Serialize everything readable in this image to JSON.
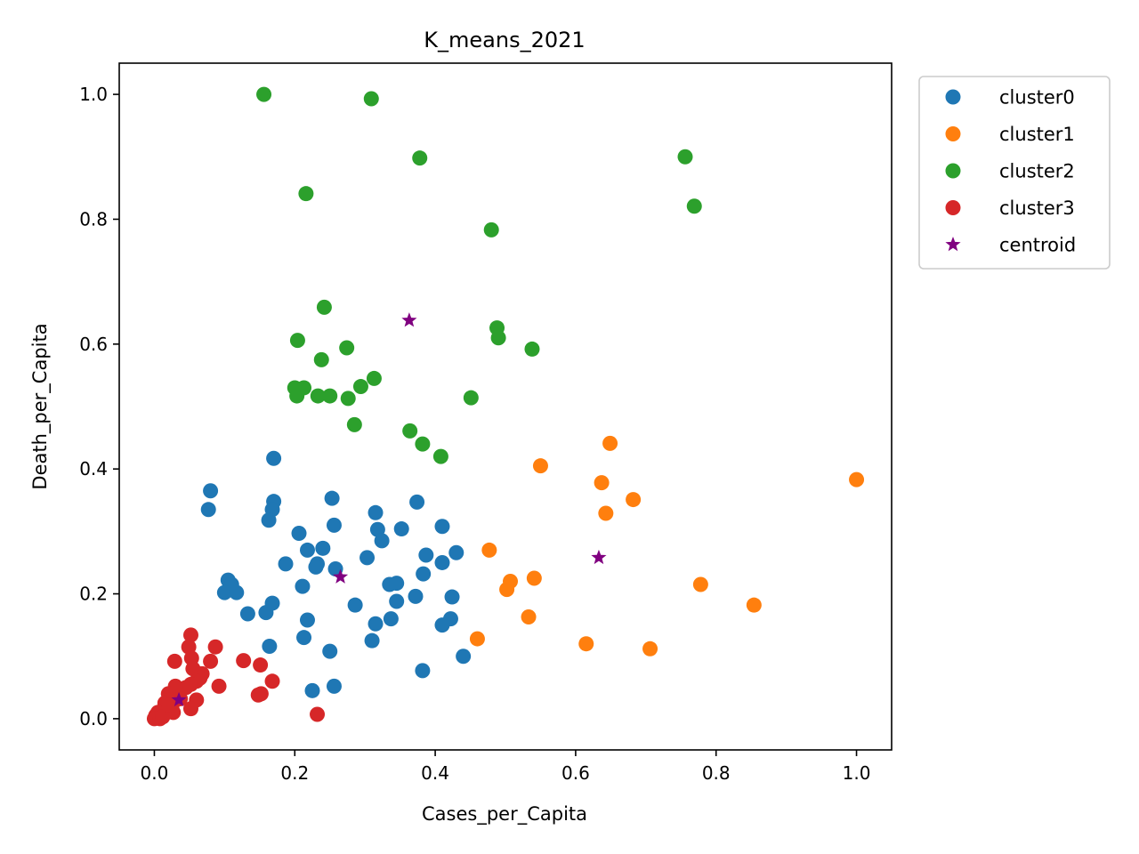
{
  "chart_data": {
    "type": "scatter",
    "title": "K_means_2021",
    "xlabel": "Cases_per_Capita",
    "ylabel": "Death_per_Capita",
    "xlim": [
      -0.05,
      1.05
    ],
    "ylim": [
      -0.05,
      1.05
    ],
    "xticks": [
      0.0,
      0.2,
      0.4,
      0.6,
      0.8,
      1.0
    ],
    "yticks": [
      0.0,
      0.2,
      0.4,
      0.6,
      0.8,
      1.0
    ],
    "xtick_labels": [
      "0.0",
      "0.2",
      "0.4",
      "0.6",
      "0.8",
      "1.0"
    ],
    "ytick_labels": [
      "0.0",
      "0.2",
      "0.4",
      "0.6",
      "0.8",
      "1.0"
    ],
    "grid": false,
    "legend_position": "outside-top-right",
    "series": [
      {
        "name": "cluster0",
        "color": "#1f77b4",
        "marker": "circle",
        "points": [
          [
            0.08,
            0.365
          ],
          [
            0.077,
            0.335
          ],
          [
            0.17,
            0.417
          ],
          [
            0.17,
            0.348
          ],
          [
            0.168,
            0.335
          ],
          [
            0.163,
            0.318
          ],
          [
            0.105,
            0.222
          ],
          [
            0.11,
            0.215
          ],
          [
            0.1,
            0.202
          ],
          [
            0.117,
            0.202
          ],
          [
            0.133,
            0.168
          ],
          [
            0.159,
            0.17
          ],
          [
            0.168,
            0.185
          ],
          [
            0.164,
            0.116
          ],
          [
            0.187,
            0.248
          ],
          [
            0.206,
            0.297
          ],
          [
            0.218,
            0.27
          ],
          [
            0.232,
            0.248
          ],
          [
            0.23,
            0.243
          ],
          [
            0.24,
            0.273
          ],
          [
            0.211,
            0.212
          ],
          [
            0.218,
            0.158
          ],
          [
            0.213,
            0.13
          ],
          [
            0.225,
            0.045
          ],
          [
            0.253,
            0.353
          ],
          [
            0.256,
            0.31
          ],
          [
            0.258,
            0.24
          ],
          [
            0.25,
            0.108
          ],
          [
            0.256,
            0.052
          ],
          [
            0.286,
            0.182
          ],
          [
            0.303,
            0.258
          ],
          [
            0.315,
            0.33
          ],
          [
            0.318,
            0.303
          ],
          [
            0.324,
            0.285
          ],
          [
            0.315,
            0.152
          ],
          [
            0.31,
            0.125
          ],
          [
            0.335,
            0.215
          ],
          [
            0.345,
            0.217
          ],
          [
            0.345,
            0.188
          ],
          [
            0.337,
            0.16
          ],
          [
            0.352,
            0.304
          ],
          [
            0.374,
            0.347
          ],
          [
            0.372,
            0.196
          ],
          [
            0.383,
            0.232
          ],
          [
            0.387,
            0.262
          ],
          [
            0.41,
            0.308
          ],
          [
            0.41,
            0.25
          ],
          [
            0.424,
            0.195
          ],
          [
            0.422,
            0.16
          ],
          [
            0.41,
            0.15
          ],
          [
            0.43,
            0.266
          ],
          [
            0.44,
            0.1
          ],
          [
            0.382,
            0.077
          ]
        ]
      },
      {
        "name": "cluster1",
        "color": "#ff7f0e",
        "marker": "circle",
        "points": [
          [
            0.477,
            0.27
          ],
          [
            0.46,
            0.128
          ],
          [
            0.55,
            0.405
          ],
          [
            0.507,
            0.22
          ],
          [
            0.502,
            0.207
          ],
          [
            0.541,
            0.225
          ],
          [
            0.533,
            0.163
          ],
          [
            0.637,
            0.378
          ],
          [
            0.649,
            0.441
          ],
          [
            0.643,
            0.329
          ],
          [
            0.682,
            0.351
          ],
          [
            0.615,
            0.12
          ],
          [
            0.706,
            0.112
          ],
          [
            0.778,
            0.215
          ],
          [
            0.854,
            0.182
          ],
          [
            1.0,
            0.383
          ]
        ]
      },
      {
        "name": "cluster2",
        "color": "#2ca02c",
        "marker": "circle",
        "points": [
          [
            0.156,
            1.0
          ],
          [
            0.309,
            0.993
          ],
          [
            0.378,
            0.898
          ],
          [
            0.216,
            0.841
          ],
          [
            0.756,
            0.9
          ],
          [
            0.769,
            0.821
          ],
          [
            0.48,
            0.783
          ],
          [
            0.242,
            0.659
          ],
          [
            0.204,
            0.606
          ],
          [
            0.488,
            0.626
          ],
          [
            0.49,
            0.61
          ],
          [
            0.538,
            0.592
          ],
          [
            0.238,
            0.575
          ],
          [
            0.274,
            0.594
          ],
          [
            0.2,
            0.53
          ],
          [
            0.213,
            0.53
          ],
          [
            0.203,
            0.517
          ],
          [
            0.233,
            0.517
          ],
          [
            0.25,
            0.517
          ],
          [
            0.276,
            0.513
          ],
          [
            0.294,
            0.532
          ],
          [
            0.313,
            0.545
          ],
          [
            0.451,
            0.514
          ],
          [
            0.285,
            0.471
          ],
          [
            0.364,
            0.461
          ],
          [
            0.382,
            0.44
          ],
          [
            0.408,
            0.42
          ]
        ]
      },
      {
        "name": "cluster3",
        "color": "#d62728",
        "marker": "circle",
        "points": [
          [
            0.052,
            0.134
          ],
          [
            0.049,
            0.115
          ],
          [
            0.053,
            0.097
          ],
          [
            0.087,
            0.115
          ],
          [
            0.08,
            0.092
          ],
          [
            0.029,
            0.092
          ],
          [
            0.055,
            0.08
          ],
          [
            0.068,
            0.072
          ],
          [
            0.065,
            0.065
          ],
          [
            0.06,
            0.06
          ],
          [
            0.052,
            0.055
          ],
          [
            0.045,
            0.05
          ],
          [
            0.03,
            0.052
          ],
          [
            0.092,
            0.052
          ],
          [
            0.127,
            0.093
          ],
          [
            0.151,
            0.086
          ],
          [
            0.168,
            0.06
          ],
          [
            0.152,
            0.04
          ],
          [
            0.148,
            0.038
          ],
          [
            0.06,
            0.03
          ],
          [
            0.052,
            0.016
          ],
          [
            0.037,
            0.032
          ],
          [
            0.02,
            0.04
          ],
          [
            0.022,
            0.03
          ],
          [
            0.015,
            0.025
          ],
          [
            0.025,
            0.02
          ],
          [
            0.018,
            0.015
          ],
          [
            0.01,
            0.012
          ],
          [
            0.005,
            0.01
          ],
          [
            0.002,
            0.005
          ],
          [
            0.0,
            0.0
          ],
          [
            0.008,
            0.0
          ],
          [
            0.012,
            0.003
          ],
          [
            0.027,
            0.01
          ],
          [
            0.021,
            0.022
          ],
          [
            0.232,
            0.007
          ]
        ]
      },
      {
        "name": "centroid",
        "color": "#800080",
        "marker": "star",
        "points": [
          [
            0.035,
            0.03
          ],
          [
            0.265,
            0.227
          ],
          [
            0.363,
            0.638
          ],
          [
            0.633,
            0.258
          ]
        ]
      }
    ]
  }
}
